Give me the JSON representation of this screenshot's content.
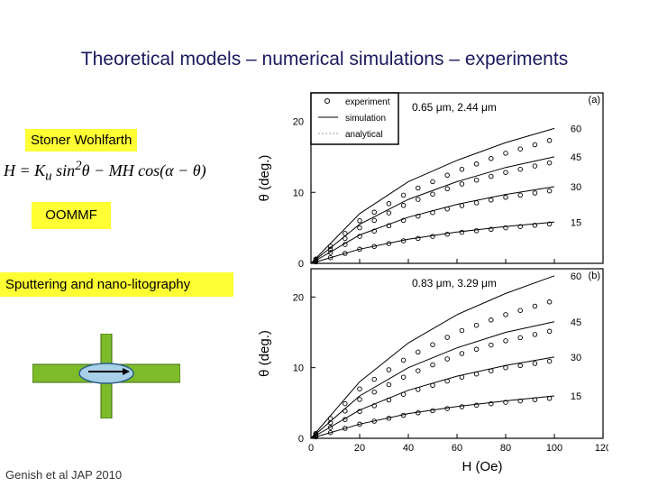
{
  "slide": {
    "title": "Theoretical models – numerical simulations – experiments",
    "labels": {
      "stoner": "Stoner Wohlfarth",
      "oommf": "OOMMF",
      "sputter": "Sputtering and nano-litography"
    },
    "equation": "H = K_u sin²θ − MH cos(α − θ)",
    "citation": "Genish et al JAP 2010"
  },
  "colors": {
    "label_bg": "#ffff33",
    "sample_green": "#7dbb2a",
    "ellipse": "#a8d0e8"
  },
  "chart_data": [
    {
      "type": "line",
      "panel": "(a)",
      "size_label": "0.65 μm, 2.44 μm",
      "xlabel": "",
      "ylabel": "θ (deg.)",
      "xlim": [
        0,
        120
      ],
      "ylim": [
        0,
        24
      ],
      "yticks": [
        0,
        10,
        20
      ],
      "legend": [
        "experiment",
        "simulation",
        "analytical"
      ],
      "legend_position": "top-left",
      "series": [
        {
          "name": "60",
          "x": [
            0,
            20,
            40,
            60,
            80,
            100
          ],
          "sim": [
            0,
            7.0,
            11.5,
            14.5,
            17.0,
            19.0
          ],
          "exp": [
            0,
            6.0,
            10.0,
            13.0,
            15.5,
            17.5
          ]
        },
        {
          "name": "45",
          "x": [
            0,
            20,
            40,
            60,
            80,
            100
          ],
          "sim": [
            0,
            5.5,
            9.0,
            11.5,
            13.5,
            15.0
          ],
          "exp": [
            0,
            5.0,
            8.5,
            11.0,
            12.8,
            14.3
          ]
        },
        {
          "name": "30",
          "x": [
            0,
            20,
            40,
            60,
            80,
            100
          ],
          "sim": [
            0,
            4.0,
            6.5,
            8.3,
            9.7,
            10.8
          ],
          "exp": [
            0,
            3.8,
            6.3,
            8.0,
            9.3,
            10.3
          ]
        },
        {
          "name": "15",
          "x": [
            0,
            20,
            40,
            60,
            80,
            100
          ],
          "sim": [
            0,
            2.0,
            3.4,
            4.4,
            5.2,
            5.8
          ],
          "exp": [
            0,
            2.0,
            3.3,
            4.3,
            5.0,
            5.6
          ]
        }
      ]
    },
    {
      "type": "line",
      "panel": "(b)",
      "size_label": "0.83 μm, 3.29 μm",
      "xlabel": "H (Oe)",
      "ylabel": "θ (deg.)",
      "xlim": [
        0,
        120
      ],
      "ylim": [
        0,
        24
      ],
      "xticks": [
        0,
        20,
        40,
        60,
        80,
        100,
        120
      ],
      "yticks": [
        0,
        10,
        20
      ],
      "series": [
        {
          "name": "60",
          "x": [
            0,
            20,
            40,
            60,
            80,
            100
          ],
          "sim": [
            0,
            8.0,
            13.5,
            17.5,
            20.5,
            23.0
          ],
          "exp": [
            0,
            7.0,
            11.5,
            15.0,
            17.5,
            19.5
          ]
        },
        {
          "name": "45",
          "x": [
            0,
            20,
            40,
            60,
            80,
            100
          ],
          "sim": [
            0,
            6.0,
            10.0,
            12.8,
            15.0,
            16.5
          ],
          "exp": [
            0,
            5.5,
            9.0,
            11.8,
            13.8,
            15.3
          ]
        },
        {
          "name": "30",
          "x": [
            0,
            20,
            40,
            60,
            80,
            100
          ],
          "sim": [
            0,
            4.0,
            6.8,
            8.8,
            10.3,
            11.5
          ],
          "exp": [
            0,
            3.8,
            6.5,
            8.5,
            10.0,
            11.0
          ]
        },
        {
          "name": "15",
          "x": [
            0,
            20,
            40,
            60,
            80,
            100
          ],
          "sim": [
            0,
            2.0,
            3.5,
            4.5,
            5.3,
            6.0
          ],
          "exp": [
            0,
            2.0,
            3.4,
            4.4,
            5.1,
            5.7
          ]
        }
      ]
    }
  ]
}
